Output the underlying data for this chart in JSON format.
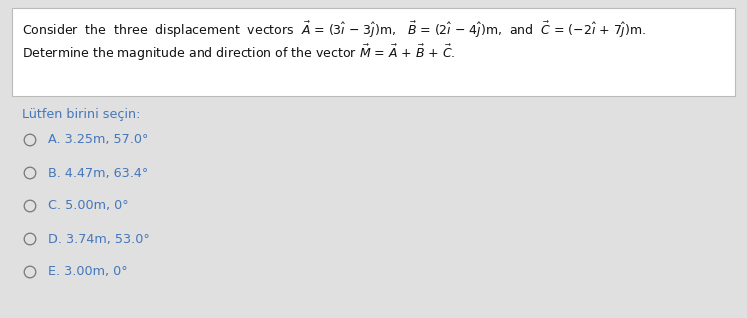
{
  "bg_color": "#e0e0e0",
  "box_color": "#ffffff",
  "box_border_color": "#bbbbbb",
  "prompt_text": "Lütfen birini seçin:",
  "prompt_color": "#4477bb",
  "options": [
    "A. 3.25m, 57.0°",
    "B. 4.47m, 63.4°",
    "C. 5.00m, 0°",
    "D. 3.74m, 53.0°",
    "E. 3.00m, 0°"
  ],
  "option_color": "#4477bb",
  "circle_color": "#777777",
  "text_color": "#111111",
  "font_size_question": 9.0,
  "font_size_options": 9.2,
  "font_size_prompt": 9.2
}
